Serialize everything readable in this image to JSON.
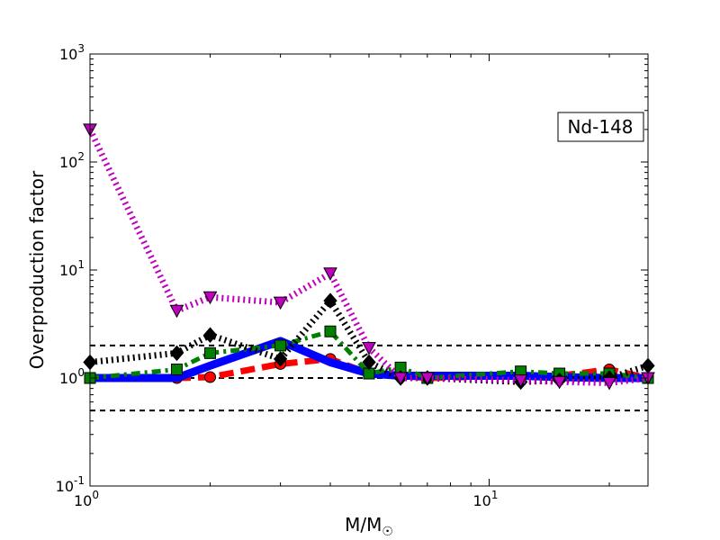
{
  "chart_data": {
    "type": "line",
    "xscale": "log",
    "yscale": "log",
    "xlim": [
      1,
      25
    ],
    "ylim": [
      0.1,
      1000
    ],
    "xlabel": "M/M",
    "xlabel_sub": "☉",
    "ylabel": "Overproduction factor",
    "annotation": "Nd-148",
    "x_ticks": [
      {
        "value": 1,
        "base": "10",
        "exp": "0"
      },
      {
        "value": 10,
        "base": "10",
        "exp": "1"
      }
    ],
    "y_ticks": [
      {
        "value": 0.1,
        "base": "10",
        "exp": "-1"
      },
      {
        "value": 1,
        "base": "10",
        "exp": "0"
      },
      {
        "value": 10,
        "base": "10",
        "exp": "1"
      },
      {
        "value": 100,
        "base": "10",
        "exp": "2"
      },
      {
        "value": 1000,
        "base": "10",
        "exp": "3"
      }
    ],
    "reference_lines": [
      0.5,
      1,
      2
    ],
    "series": [
      {
        "color": "#ff0000",
        "line": "dashed",
        "marker": "circle",
        "x": [
          1,
          1.65,
          2,
          3,
          4,
          5,
          6,
          7,
          12,
          15,
          20,
          25
        ],
        "y": [
          1.0,
          1.0,
          1.02,
          1.35,
          1.5,
          1.1,
          1.05,
          1.0,
          1.05,
          1.05,
          1.2,
          1.0
        ]
      },
      {
        "color": "#0000ff",
        "line": "solid",
        "marker": "none",
        "x": [
          1,
          1.65,
          2,
          3,
          4,
          5,
          6,
          7,
          12,
          15,
          20,
          25
        ],
        "y": [
          1.0,
          1.0,
          1.3,
          2.2,
          1.4,
          1.1,
          1.05,
          1.05,
          1.05,
          1.02,
          1.0,
          1.0
        ]
      },
      {
        "color": "#007f00",
        "line": "dashdot",
        "marker": "square",
        "x": [
          1,
          1.65,
          2,
          3,
          4,
          5,
          6,
          7,
          12,
          15,
          20,
          25
        ],
        "y": [
          1.0,
          1.2,
          1.7,
          2.0,
          2.7,
          1.1,
          1.25,
          1.0,
          1.15,
          1.1,
          1.1,
          1.0
        ]
      },
      {
        "color": "#000000",
        "line": "dotted",
        "marker": "diamond",
        "x": [
          1,
          1.65,
          2,
          3,
          4,
          5,
          6,
          7,
          12,
          15,
          20,
          25
        ],
        "y": [
          1.4,
          1.7,
          2.5,
          1.5,
          5.2,
          1.4,
          1.0,
          1.0,
          0.92,
          0.95,
          1.0,
          1.3
        ]
      },
      {
        "color": "#bf00bf",
        "line": "dotted",
        "marker": "triangle-down",
        "x": [
          1,
          1.65,
          2,
          3,
          4,
          5,
          6,
          7,
          12,
          15,
          20,
          25
        ],
        "y": [
          200,
          4.2,
          5.6,
          5.0,
          9.3,
          1.9,
          1.0,
          1.0,
          0.95,
          0.92,
          0.9,
          1.0
        ]
      }
    ]
  }
}
